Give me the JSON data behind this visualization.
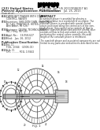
{
  "bg_color": "#ffffff",
  "title_line1": "(12) United States",
  "title_line2": "Patent Application Publication",
  "title_line3": "Guo et al.",
  "header_right1": "(10) Pub. No.: US 2013/0186357 A1",
  "header_right2": "(43) Pub. Date:    Jul. 25, 2013",
  "fields": [
    [
      "(54)",
      "CAMSHAFT PHASER WITH COAXIAL\nCONTROL VALVES"
    ],
    [
      "(75)",
      "Inventors: SHELDON GYAN, Hazel Park,\nMI (US); TIMOTHY R. HOYES,\nAnn Arbor, MI (US)"
    ],
    [
      "(73)",
      "Assignee: DELPHI TECHNOLOGIES,\nINC., Troy, MI (US)"
    ],
    [
      "(21)",
      "Appl. No.:   13/358,627"
    ],
    [
      "(22)",
      "Filed:   Jan. 26, 2012"
    ]
  ],
  "class_title": "Publication Classification",
  "class_fields": [
    [
      "(51)",
      "Int. Cl.\nF01L 1/344   (2006.01)"
    ],
    [
      "(52)",
      "U.S. Cl.\nCPC ......... F01L 1/3442"
    ]
  ],
  "abstract_title": "ABSTRACT",
  "abstract_text": "A camshaft phaser is provided for phasing a\ncamshaft relative to a crankshaft of an engine. The\ncamshaft phaser is provided with coaxial control\nvalves positioned along the central axis of the cam-\nshaft phaser. One control valve controls oil flow to\ndrive the camshaft phaser and another control valve\ncontrols oil flow to lock and unlock a lock pin. By\npositioning the control valves coaxially, the axial\nlength of the camshaft phaser is minimized.\n\nThe camshaft phaser and associated components are not\nlimited to any particular embodiments described herein.",
  "fig_label": "Fig. 1",
  "barcode_color": "#000000",
  "text_color": "#333333",
  "diagram_color": "#555555"
}
